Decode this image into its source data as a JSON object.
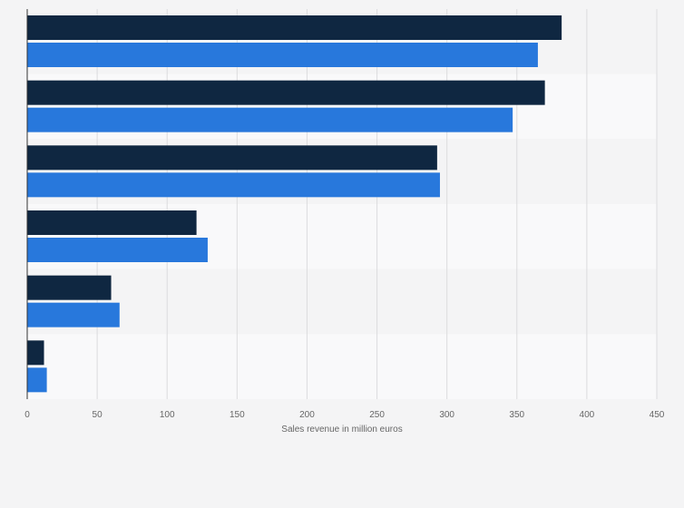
{
  "chart_data": {
    "type": "bar",
    "orientation": "horizontal",
    "categories": [
      "",
      "",
      "",
      "",
      "",
      ""
    ],
    "series": [
      {
        "color": "#0f2741",
        "values": [
          382,
          370,
          293,
          121,
          60,
          12
        ]
      },
      {
        "color": "#2878dc",
        "values": [
          365,
          347,
          295,
          129,
          66,
          14
        ]
      }
    ],
    "xlabel": "Sales revenue in million euros",
    "ylabel": "",
    "xlim": [
      0,
      450
    ],
    "xticks": [
      "0",
      "50",
      "100",
      "150",
      "200",
      "250",
      "300",
      "350",
      "400",
      "450"
    ],
    "grid": true,
    "legend": "none"
  }
}
